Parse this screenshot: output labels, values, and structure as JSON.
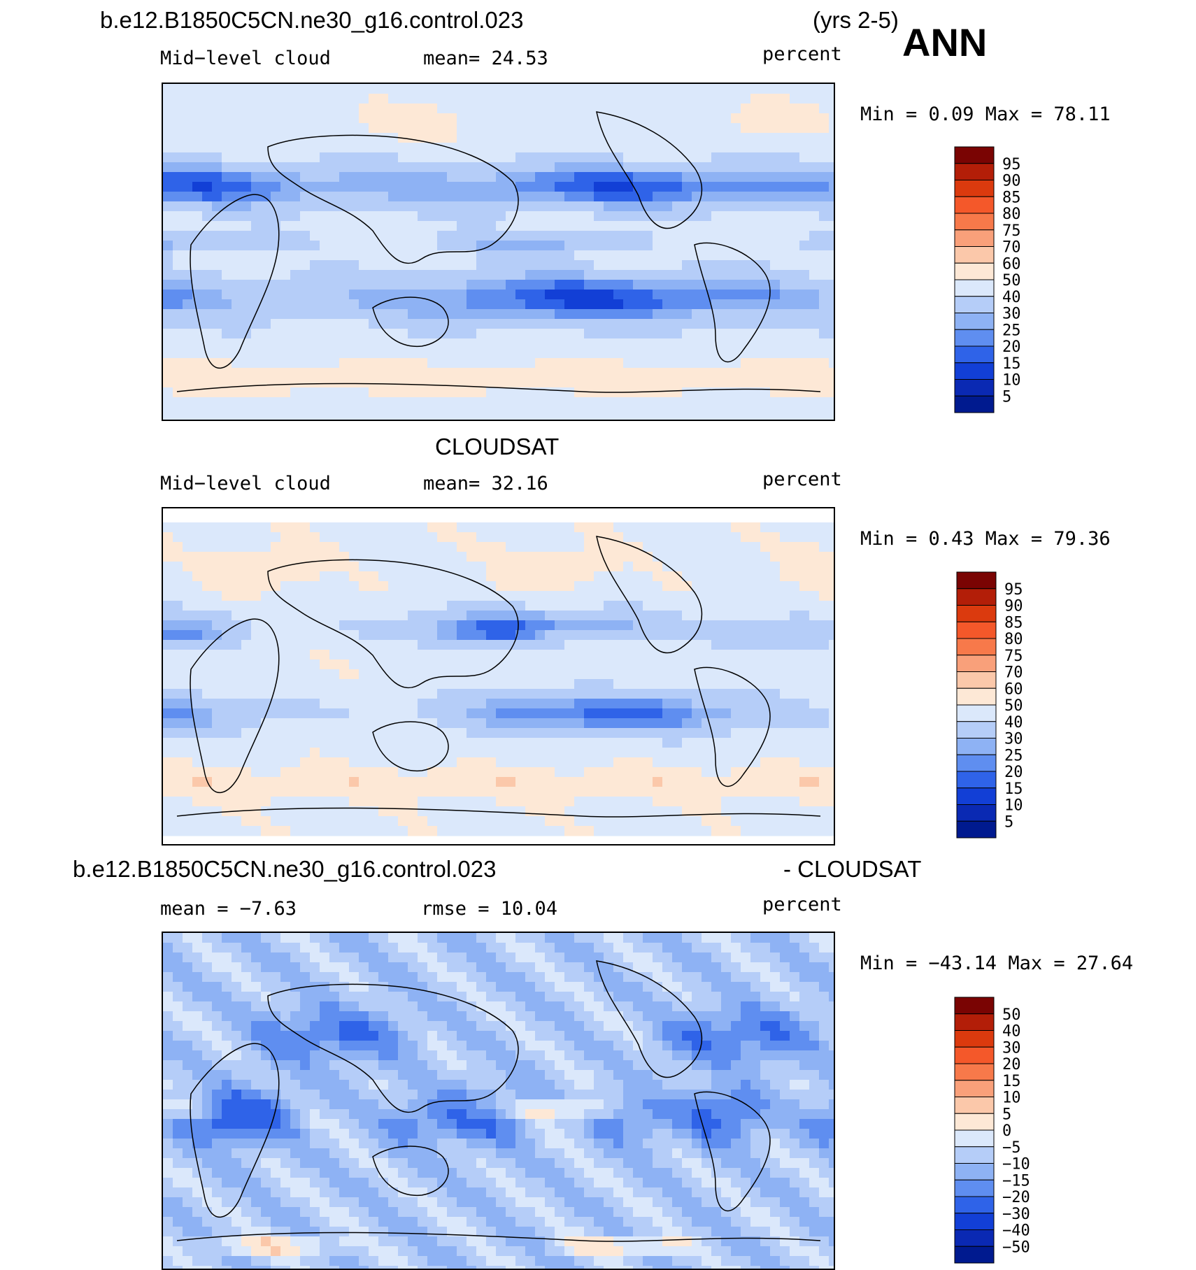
{
  "header": {
    "case_name": "b.e12.B1850C5CN.ne30_g16.control.023",
    "years": "(yrs 2-5)",
    "season": "ANN"
  },
  "chart_data": [
    {
      "type": "heatmap",
      "panel": "model",
      "left_label": "Mid−level  cloud",
      "center_label": "mean=   24.53",
      "units": "percent",
      "min_max": "Min  =     0.09  Max  =    78.11",
      "colorbar_levels": [
        "95",
        "90",
        "85",
        "80",
        "75",
        "70",
        "60",
        "50",
        "40",
        "30",
        "25",
        "20",
        "15",
        "10",
        "5"
      ],
      "colors": [
        "#7a0403",
        "#b31e08",
        "#db3a0e",
        "#f4582a",
        "#f7794a",
        "#f9a07a",
        "#fbc8aa",
        "#fde8d6",
        "#dbe8fb",
        "#b5cdf8",
        "#8eb2f4",
        "#5f8ef0",
        "#2f63e8",
        "#123fd6",
        "#0a29b3",
        "#001a8f"
      ]
    },
    {
      "type": "heatmap",
      "panel": "observation",
      "title": "CLOUDSAT",
      "left_label": "Mid−level  cloud",
      "center_label": "mean=   32.16",
      "units": "percent",
      "min_max": "Min  =     0.43  Max  =    79.36",
      "colorbar_levels": [
        "95",
        "90",
        "85",
        "80",
        "75",
        "70",
        "60",
        "50",
        "40",
        "30",
        "25",
        "20",
        "15",
        "10",
        "5"
      ],
      "colors": [
        "#7a0403",
        "#b31e08",
        "#db3a0e",
        "#f4582a",
        "#f7794a",
        "#f9a07a",
        "#fbc8aa",
        "#fde8d6",
        "#dbe8fb",
        "#b5cdf8",
        "#8eb2f4",
        "#5f8ef0",
        "#2f63e8",
        "#123fd6",
        "#0a29b3",
        "#001a8f"
      ]
    },
    {
      "type": "heatmap",
      "panel": "difference",
      "title_left": "b.e12.B1850C5CN.ne30_g16.control.023",
      "title_right": "- CLOUDSAT",
      "left_label": "mean  =   −7.63",
      "center_label": "rmse  =   10.04",
      "units": "percent",
      "min_max": "Min  = −43.14  Max  =    27.64",
      "colorbar_levels": [
        "50",
        "40",
        "30",
        "20",
        "15",
        "10",
        "5",
        "0",
        "−5",
        "−10",
        "−15",
        "−20",
        "−30",
        "−40",
        "−50"
      ],
      "colors": [
        "#7a0403",
        "#b31e08",
        "#db3a0e",
        "#f4582a",
        "#f7794a",
        "#f9a07a",
        "#fbc8aa",
        "#fde8d6",
        "#dbe8fb",
        "#b5cdf8",
        "#8eb2f4",
        "#5f8ef0",
        "#2f63e8",
        "#123fd6",
        "#0a29b3",
        "#001a8f"
      ]
    }
  ]
}
